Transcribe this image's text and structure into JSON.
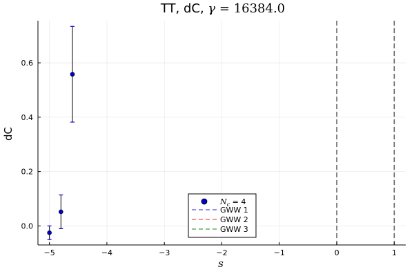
{
  "chart_data": {
    "type": "scatter",
    "title": {
      "prefix": "TT, dC, ",
      "gamma_symbol": "γ",
      "equals": " = ",
      "gamma_value": "16384.0"
    },
    "xlabel": "s",
    "ylabel": "dC",
    "xlim": [
      -5.2,
      1.2
    ],
    "ylim": [
      -0.07,
      0.755
    ],
    "x_ticks": [
      -5,
      -4,
      -3,
      -2,
      -1,
      0,
      1
    ],
    "x_tick_labels": [
      "−5",
      "−4",
      "−3",
      "−2",
      "−1",
      "0",
      "1"
    ],
    "y_ticks": [
      0.0,
      0.2,
      0.4,
      0.6
    ],
    "y_tick_labels": [
      "0.0",
      "0.2",
      "0.4",
      "0.6"
    ],
    "grid": true,
    "legend_position": "bottom-center",
    "series": [
      {
        "name_symbol": "N",
        "name_subscript": "c",
        "name_suffix": " = 4",
        "color": "#0000cc",
        "points": [
          {
            "x": -5.0,
            "y": -0.025,
            "err": 0.025
          },
          {
            "x": -4.8,
            "y": 0.052,
            "err": 0.062
          },
          {
            "x": -4.6,
            "y": 0.558,
            "err": 0.176
          }
        ]
      }
    ],
    "vlines": [
      {
        "x": 0,
        "color": "#555555"
      },
      {
        "x": 1,
        "color": "#555555"
      }
    ],
    "legend_lines": [
      {
        "label": "GWW 1",
        "color": "#6a6af0"
      },
      {
        "label": "GWW 2",
        "color": "#f07070"
      },
      {
        "label": "GWW 3",
        "color": "#60b060"
      }
    ]
  }
}
